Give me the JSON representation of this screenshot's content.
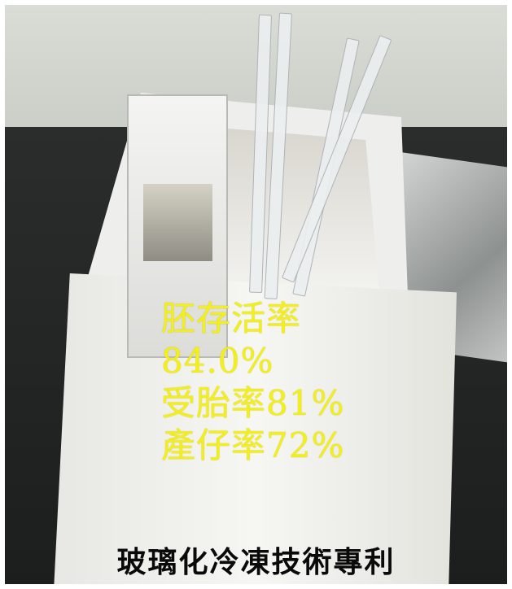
{
  "overlay": {
    "line1": "胚存活率",
    "line2": "84.0%",
    "line3": "受胎率81%",
    "line4": "產仔率72%"
  },
  "caption": "玻璃化冷凍技術專利",
  "colors": {
    "overlay_text": "#f3ef1d",
    "caption_text": "#0a0a0a"
  }
}
